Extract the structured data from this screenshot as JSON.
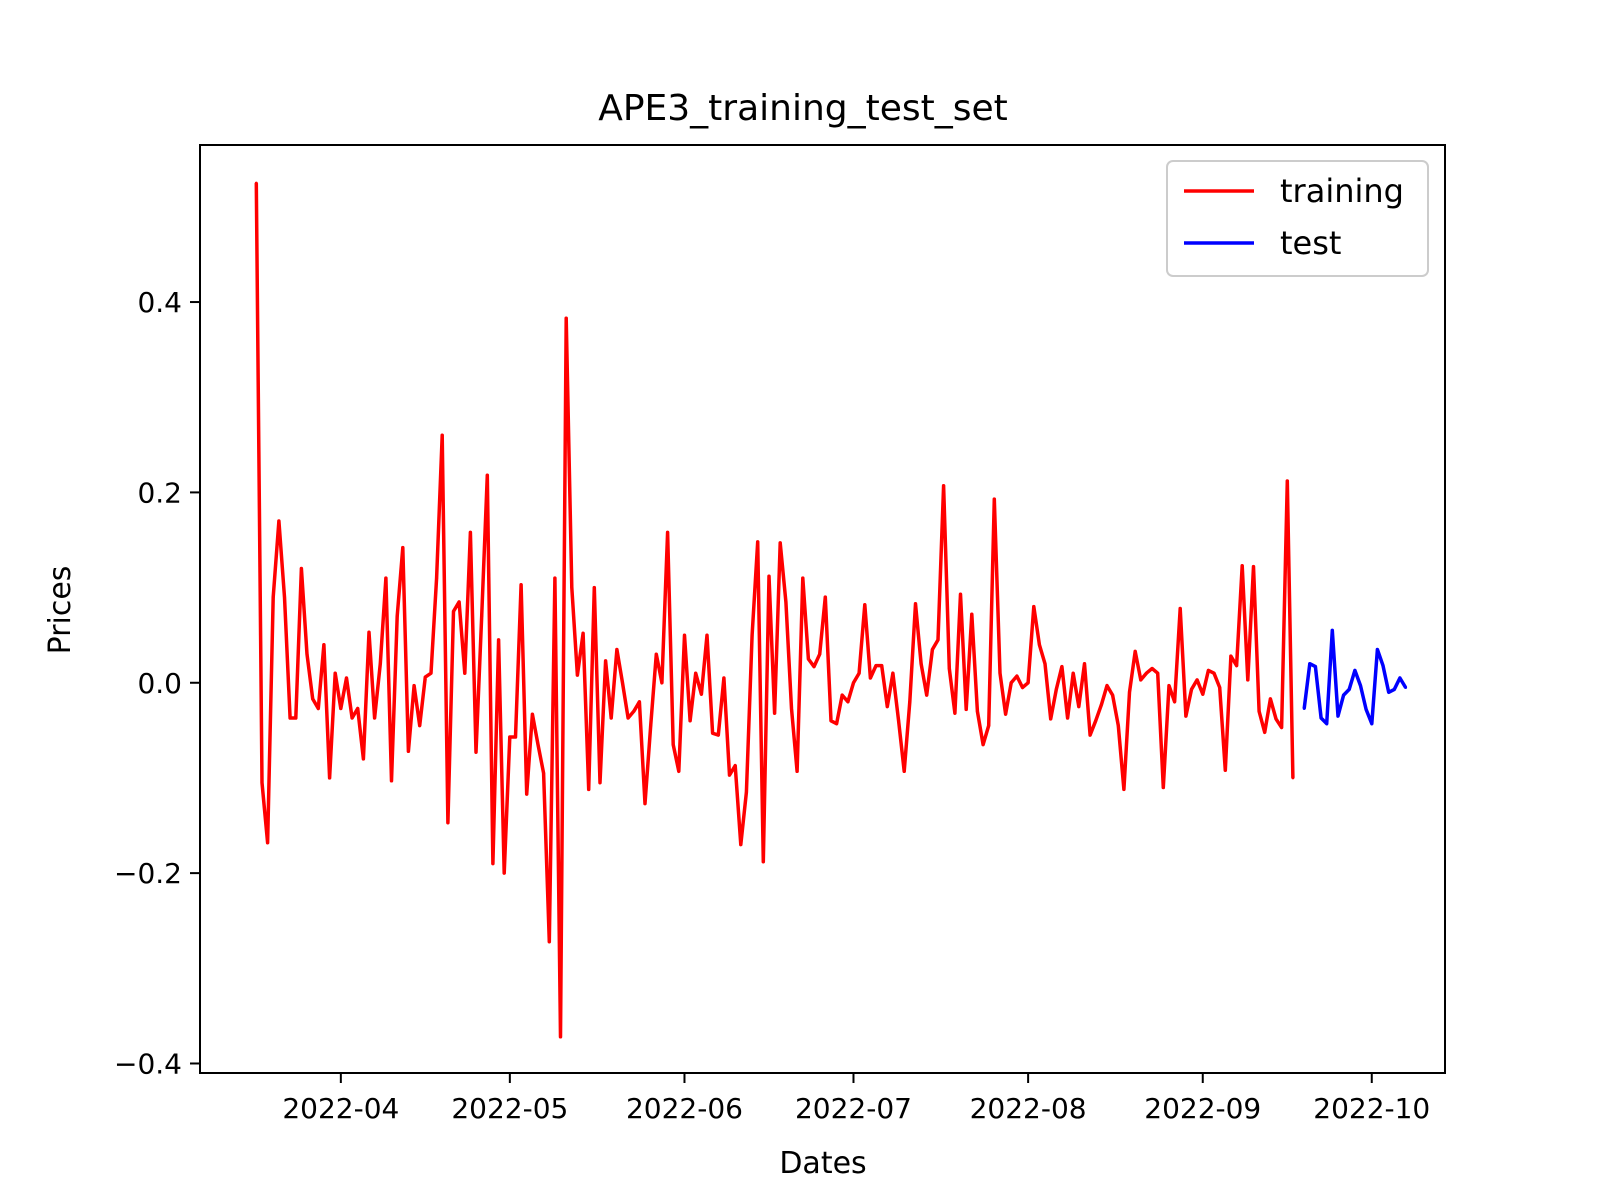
{
  "chart_data": {
    "type": "line",
    "title": "APE3_training_test_set",
    "xlabel": "Dates",
    "ylabel": "Prices",
    "x_ticks": [
      "2022-04",
      "2022-05",
      "2022-06",
      "2022-07",
      "2022-08",
      "2022-09",
      "2022-10"
    ],
    "y_ticks": [
      "−0.4",
      "−0.2",
      "0.0",
      "0.2",
      "0.4"
    ],
    "xlim": [
      "2022-03-07",
      "2022-10-14"
    ],
    "ylim": [
      -0.41,
      0.565
    ],
    "grid": false,
    "legend": "top-right",
    "series": [
      {
        "name": "training",
        "color": "#ff0000",
        "points": [
          [
            "2022-03-17",
            0.525
          ],
          [
            "2022-03-18",
            -0.105
          ],
          [
            "2022-03-19",
            -0.168
          ],
          [
            "2022-03-20",
            0.09
          ],
          [
            "2022-03-21",
            0.17
          ],
          [
            "2022-03-22",
            0.09
          ],
          [
            "2022-03-23",
            -0.037
          ],
          [
            "2022-03-24",
            -0.037
          ],
          [
            "2022-03-25",
            0.12
          ],
          [
            "2022-03-26",
            0.03
          ],
          [
            "2022-03-27",
            -0.017
          ],
          [
            "2022-03-28",
            -0.027
          ],
          [
            "2022-03-29",
            0.04
          ],
          [
            "2022-03-30",
            -0.1
          ],
          [
            "2022-03-31",
            0.01
          ],
          [
            "2022-04-01",
            -0.027
          ],
          [
            "2022-04-02",
            0.005
          ],
          [
            "2022-04-03",
            -0.037
          ],
          [
            "2022-04-04",
            -0.027
          ],
          [
            "2022-04-05",
            -0.08
          ],
          [
            "2022-04-06",
            0.053
          ],
          [
            "2022-04-07",
            -0.037
          ],
          [
            "2022-04-08",
            0.02
          ],
          [
            "2022-04-09",
            0.11
          ],
          [
            "2022-04-10",
            -0.103
          ],
          [
            "2022-04-11",
            0.07
          ],
          [
            "2022-04-12",
            0.142
          ],
          [
            "2022-04-13",
            -0.072
          ],
          [
            "2022-04-14",
            -0.003
          ],
          [
            "2022-04-15",
            -0.045
          ],
          [
            "2022-04-16",
            0.006
          ],
          [
            "2022-04-17",
            0.01
          ],
          [
            "2022-04-18",
            0.11
          ],
          [
            "2022-04-19",
            0.26
          ],
          [
            "2022-04-20",
            -0.147
          ],
          [
            "2022-04-21",
            0.075
          ],
          [
            "2022-04-22",
            0.085
          ],
          [
            "2022-04-23",
            0.01
          ],
          [
            "2022-04-24",
            0.158
          ],
          [
            "2022-04-25",
            -0.073
          ],
          [
            "2022-04-26",
            0.07
          ],
          [
            "2022-04-27",
            0.218
          ],
          [
            "2022-04-28",
            -0.19
          ],
          [
            "2022-04-29",
            0.045
          ],
          [
            "2022-04-30",
            -0.2
          ],
          [
            "2022-05-01",
            -0.057
          ],
          [
            "2022-05-02",
            -0.057
          ],
          [
            "2022-05-03",
            0.103
          ],
          [
            "2022-05-04",
            -0.117
          ],
          [
            "2022-05-05",
            -0.033
          ],
          [
            "2022-05-06",
            -0.065
          ],
          [
            "2022-05-07",
            -0.095
          ],
          [
            "2022-05-08",
            -0.272
          ],
          [
            "2022-05-09",
            0.11
          ],
          [
            "2022-05-10",
            -0.372
          ],
          [
            "2022-05-11",
            0.383
          ],
          [
            "2022-05-12",
            0.1
          ],
          [
            "2022-05-13",
            0.008
          ],
          [
            "2022-05-14",
            0.052
          ],
          [
            "2022-05-15",
            -0.112
          ],
          [
            "2022-05-16",
            0.1
          ],
          [
            "2022-05-17",
            -0.105
          ],
          [
            "2022-05-18",
            0.023
          ],
          [
            "2022-05-19",
            -0.037
          ],
          [
            "2022-05-20",
            0.035
          ],
          [
            "2022-05-21",
            0.0
          ],
          [
            "2022-05-22",
            -0.037
          ],
          [
            "2022-05-23",
            -0.03
          ],
          [
            "2022-05-24",
            -0.02
          ],
          [
            "2022-05-25",
            -0.127
          ],
          [
            "2022-05-26",
            -0.045
          ],
          [
            "2022-05-27",
            0.03
          ],
          [
            "2022-05-28",
            0.0
          ],
          [
            "2022-05-29",
            0.158
          ],
          [
            "2022-05-30",
            -0.065
          ],
          [
            "2022-05-31",
            -0.093
          ],
          [
            "2022-06-01",
            0.05
          ],
          [
            "2022-06-02",
            -0.04
          ],
          [
            "2022-06-03",
            0.01
          ],
          [
            "2022-06-04",
            -0.012
          ],
          [
            "2022-06-05",
            0.05
          ],
          [
            "2022-06-06",
            -0.053
          ],
          [
            "2022-06-07",
            -0.055
          ],
          [
            "2022-06-08",
            0.005
          ],
          [
            "2022-06-09",
            -0.097
          ],
          [
            "2022-06-10",
            -0.087
          ],
          [
            "2022-06-11",
            -0.17
          ],
          [
            "2022-06-12",
            -0.115
          ],
          [
            "2022-06-13",
            0.05
          ],
          [
            "2022-06-14",
            0.148
          ],
          [
            "2022-06-15",
            -0.188
          ],
          [
            "2022-06-16",
            0.112
          ],
          [
            "2022-06-17",
            -0.032
          ],
          [
            "2022-06-18",
            0.147
          ],
          [
            "2022-06-19",
            0.085
          ],
          [
            "2022-06-20",
            -0.027
          ],
          [
            "2022-06-21",
            -0.093
          ],
          [
            "2022-06-22",
            0.11
          ],
          [
            "2022-06-23",
            0.025
          ],
          [
            "2022-06-24",
            0.017
          ],
          [
            "2022-06-25",
            0.03
          ],
          [
            "2022-06-26",
            0.09
          ],
          [
            "2022-06-27",
            -0.04
          ],
          [
            "2022-06-28",
            -0.043
          ],
          [
            "2022-06-29",
            -0.013
          ],
          [
            "2022-06-30",
            -0.02
          ],
          [
            "2022-07-01",
            0.0
          ],
          [
            "2022-07-02",
            0.01
          ],
          [
            "2022-07-03",
            0.082
          ],
          [
            "2022-07-04",
            0.005
          ],
          [
            "2022-07-05",
            0.018
          ],
          [
            "2022-07-06",
            0.018
          ],
          [
            "2022-07-07",
            -0.025
          ],
          [
            "2022-07-08",
            0.01
          ],
          [
            "2022-07-09",
            -0.04
          ],
          [
            "2022-07-10",
            -0.093
          ],
          [
            "2022-07-11",
            -0.02
          ],
          [
            "2022-07-12",
            0.083
          ],
          [
            "2022-07-13",
            0.02
          ],
          [
            "2022-07-14",
            -0.013
          ],
          [
            "2022-07-15",
            0.035
          ],
          [
            "2022-07-16",
            0.045
          ],
          [
            "2022-07-17",
            0.207
          ],
          [
            "2022-07-18",
            0.015
          ],
          [
            "2022-07-19",
            -0.032
          ],
          [
            "2022-07-20",
            0.093
          ],
          [
            "2022-07-21",
            -0.028
          ],
          [
            "2022-07-22",
            0.072
          ],
          [
            "2022-07-23",
            -0.03
          ],
          [
            "2022-07-24",
            -0.065
          ],
          [
            "2022-07-25",
            -0.045
          ],
          [
            "2022-07-26",
            0.193
          ],
          [
            "2022-07-27",
            0.01
          ],
          [
            "2022-07-28",
            -0.033
          ],
          [
            "2022-07-29",
            0.0
          ],
          [
            "2022-07-30",
            0.007
          ],
          [
            "2022-07-31",
            -0.005
          ],
          [
            "2022-08-01",
            0.0
          ],
          [
            "2022-08-02",
            0.08
          ],
          [
            "2022-08-03",
            0.04
          ],
          [
            "2022-08-04",
            0.02
          ],
          [
            "2022-08-05",
            -0.038
          ],
          [
            "2022-08-06",
            -0.007
          ],
          [
            "2022-08-07",
            0.017
          ],
          [
            "2022-08-08",
            -0.037
          ],
          [
            "2022-08-09",
            0.01
          ],
          [
            "2022-08-10",
            -0.025
          ],
          [
            "2022-08-11",
            0.02
          ],
          [
            "2022-08-12",
            -0.055
          ],
          [
            "2022-08-13",
            -0.04
          ],
          [
            "2022-08-14",
            -0.023
          ],
          [
            "2022-08-15",
            -0.003
          ],
          [
            "2022-08-16",
            -0.013
          ],
          [
            "2022-08-17",
            -0.045
          ],
          [
            "2022-08-18",
            -0.112
          ],
          [
            "2022-08-19",
            -0.01
          ],
          [
            "2022-08-20",
            0.033
          ],
          [
            "2022-08-21",
            0.003
          ],
          [
            "2022-08-22",
            0.01
          ],
          [
            "2022-08-23",
            0.015
          ],
          [
            "2022-08-24",
            0.01
          ],
          [
            "2022-08-25",
            -0.11
          ],
          [
            "2022-08-26",
            -0.003
          ],
          [
            "2022-08-27",
            -0.02
          ],
          [
            "2022-08-28",
            0.078
          ],
          [
            "2022-08-29",
            -0.035
          ],
          [
            "2022-08-30",
            -0.007
          ],
          [
            "2022-08-31",
            0.003
          ],
          [
            "2022-09-01",
            -0.012
          ],
          [
            "2022-09-02",
            0.013
          ],
          [
            "2022-09-03",
            0.01
          ],
          [
            "2022-09-04",
            -0.005
          ],
          [
            "2022-09-05",
            -0.092
          ],
          [
            "2022-09-06",
            0.028
          ],
          [
            "2022-09-07",
            0.018
          ],
          [
            "2022-09-08",
            0.123
          ],
          [
            "2022-09-09",
            0.003
          ],
          [
            "2022-09-10",
            0.122
          ],
          [
            "2022-09-11",
            -0.03
          ],
          [
            "2022-09-12",
            -0.052
          ],
          [
            "2022-09-13",
            -0.017
          ],
          [
            "2022-09-14",
            -0.038
          ],
          [
            "2022-09-15",
            -0.047
          ],
          [
            "2022-09-16",
            0.212
          ],
          [
            "2022-09-17",
            -0.1
          ]
        ]
      },
      {
        "name": "test",
        "color": "#0000ff",
        "points": [
          [
            "2022-09-19",
            -0.027
          ],
          [
            "2022-09-20",
            0.02
          ],
          [
            "2022-09-21",
            0.017
          ],
          [
            "2022-09-22",
            -0.037
          ],
          [
            "2022-09-23",
            -0.043
          ],
          [
            "2022-09-24",
            0.055
          ],
          [
            "2022-09-25",
            -0.035
          ],
          [
            "2022-09-26",
            -0.013
          ],
          [
            "2022-09-27",
            -0.007
          ],
          [
            "2022-09-28",
            0.013
          ],
          [
            "2022-09-29",
            -0.003
          ],
          [
            "2022-09-30",
            -0.028
          ],
          [
            "2022-10-01",
            -0.043
          ],
          [
            "2022-10-02",
            0.035
          ],
          [
            "2022-10-03",
            0.018
          ],
          [
            "2022-10-04",
            -0.01
          ],
          [
            "2022-10-05",
            -0.007
          ],
          [
            "2022-10-06",
            0.005
          ],
          [
            "2022-10-07",
            -0.005
          ]
        ]
      }
    ]
  }
}
